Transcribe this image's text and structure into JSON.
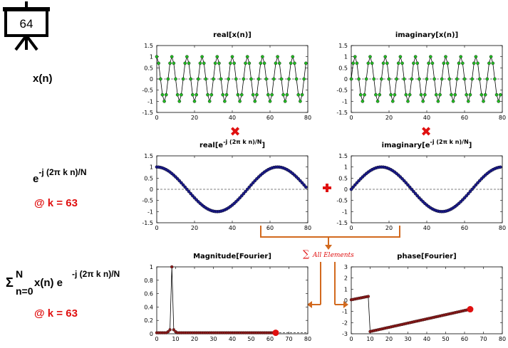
{
  "slide_number": "64",
  "labels": {
    "xn": "x(n)",
    "exp_base": "e",
    "exp_sup": "-j (2π k n)/N",
    "at_k1": "@ k = 63",
    "sum_sigma": "Σ",
    "sum_top": "N",
    "sum_bottom": "n=0",
    "sum_body": "x(n) e",
    "sum_sup": "-j (2π k n)/N",
    "at_k2": "@ k = 63",
    "sum_all": "All Elements",
    "sum_all_sigma": "∑"
  },
  "colors": {
    "green": "#22bb22",
    "navy": "#1a1a8c",
    "red": "#e01010",
    "orange": "#d2691e",
    "dark_red": "#8b1a1a"
  },
  "chart_data": [
    {
      "id": "real_x",
      "type": "line",
      "title": "real[x(n)]",
      "function": "cos(2*pi*8*n/64)",
      "n_range": [
        0,
        79
      ],
      "xlim": [
        0,
        80
      ],
      "ylim": [
        -1.5,
        1.5
      ],
      "xticks": [
        0,
        20,
        40,
        60,
        80
      ],
      "yticks": [
        -1.5,
        -1,
        -0.5,
        0,
        0.5,
        1,
        1.5
      ],
      "marker_color": "#22bb22"
    },
    {
      "id": "imag_x",
      "type": "line",
      "title": "imaginary[x(n)]",
      "function": "sin(2*pi*8*n/64)",
      "n_range": [
        0,
        79
      ],
      "xlim": [
        0,
        80
      ],
      "ylim": [
        -1.5,
        1.5
      ],
      "xticks": [
        0,
        20,
        40,
        60,
        80
      ],
      "yticks": [
        -1.5,
        -1,
        -0.5,
        0,
        0.5,
        1,
        1.5
      ],
      "marker_color": "#22bb22"
    },
    {
      "id": "real_e",
      "type": "line",
      "title_main": "real[e",
      "title_sup": "-j (2π k n)/N",
      "title_end": "]",
      "function": "cos(2*pi*63*n/64)",
      "n_range": [
        0,
        79
      ],
      "xlim": [
        0,
        80
      ],
      "ylim": [
        -1.5,
        1.5
      ],
      "xticks": [
        0,
        20,
        40,
        60,
        80
      ],
      "yticks": [
        -1.5,
        -1,
        -0.5,
        0,
        0.5,
        1,
        1.5
      ],
      "marker_color": "#1a1a8c"
    },
    {
      "id": "imag_e",
      "type": "line",
      "title_main": "imaginary[e",
      "title_sup": "-j (2π k n)/N",
      "title_end": "]",
      "function": "-sin(2*pi*63*n/64)",
      "n_range": [
        0,
        79
      ],
      "xlim": [
        0,
        80
      ],
      "ylim": [
        -1.5,
        1.5
      ],
      "xticks": [
        0,
        20,
        40,
        60,
        80
      ],
      "yticks": [
        -1.5,
        -1,
        -0.5,
        0,
        0.5,
        1,
        1.5
      ],
      "marker_color": "#1a1a8c"
    },
    {
      "id": "magnitude",
      "type": "line",
      "title": "Magnitude[Fourier]",
      "k_range": [
        0,
        63
      ],
      "peak_k": 8,
      "peak_value": 1,
      "near_peak_values": {
        "6": 0.03,
        "7": 0.06,
        "9": 0.06,
        "10": 0.03
      },
      "floor_value": 0.015,
      "highlight": {
        "k": 63,
        "value": 0.015
      },
      "xlim": [
        0,
        80
      ],
      "ylim": [
        0,
        1
      ],
      "xticks": [
        0,
        10,
        20,
        30,
        40,
        50,
        60,
        70,
        80
      ],
      "yticks": [
        0,
        0.2,
        0.4,
        0.6,
        0.8,
        1
      ]
    },
    {
      "id": "phase",
      "type": "line",
      "title": "phase[Fourier]",
      "k_range": [
        0,
        63
      ],
      "segment1": {
        "k_start": 0,
        "k_end": 9,
        "v_start": 0.05,
        "v_end": 0.35
      },
      "segment2": {
        "k_start": 10,
        "k_end": 63,
        "v_start": -2.8,
        "v_end": -0.8
      },
      "highlight": {
        "k": 63,
        "value": -0.8
      },
      "xlim": [
        0,
        80
      ],
      "ylim": [
        -3,
        3
      ],
      "xticks": [
        0,
        10,
        20,
        30,
        40,
        50,
        60,
        70,
        80
      ],
      "yticks": [
        -3,
        -2,
        -1,
        0,
        1,
        2,
        3
      ]
    }
  ]
}
